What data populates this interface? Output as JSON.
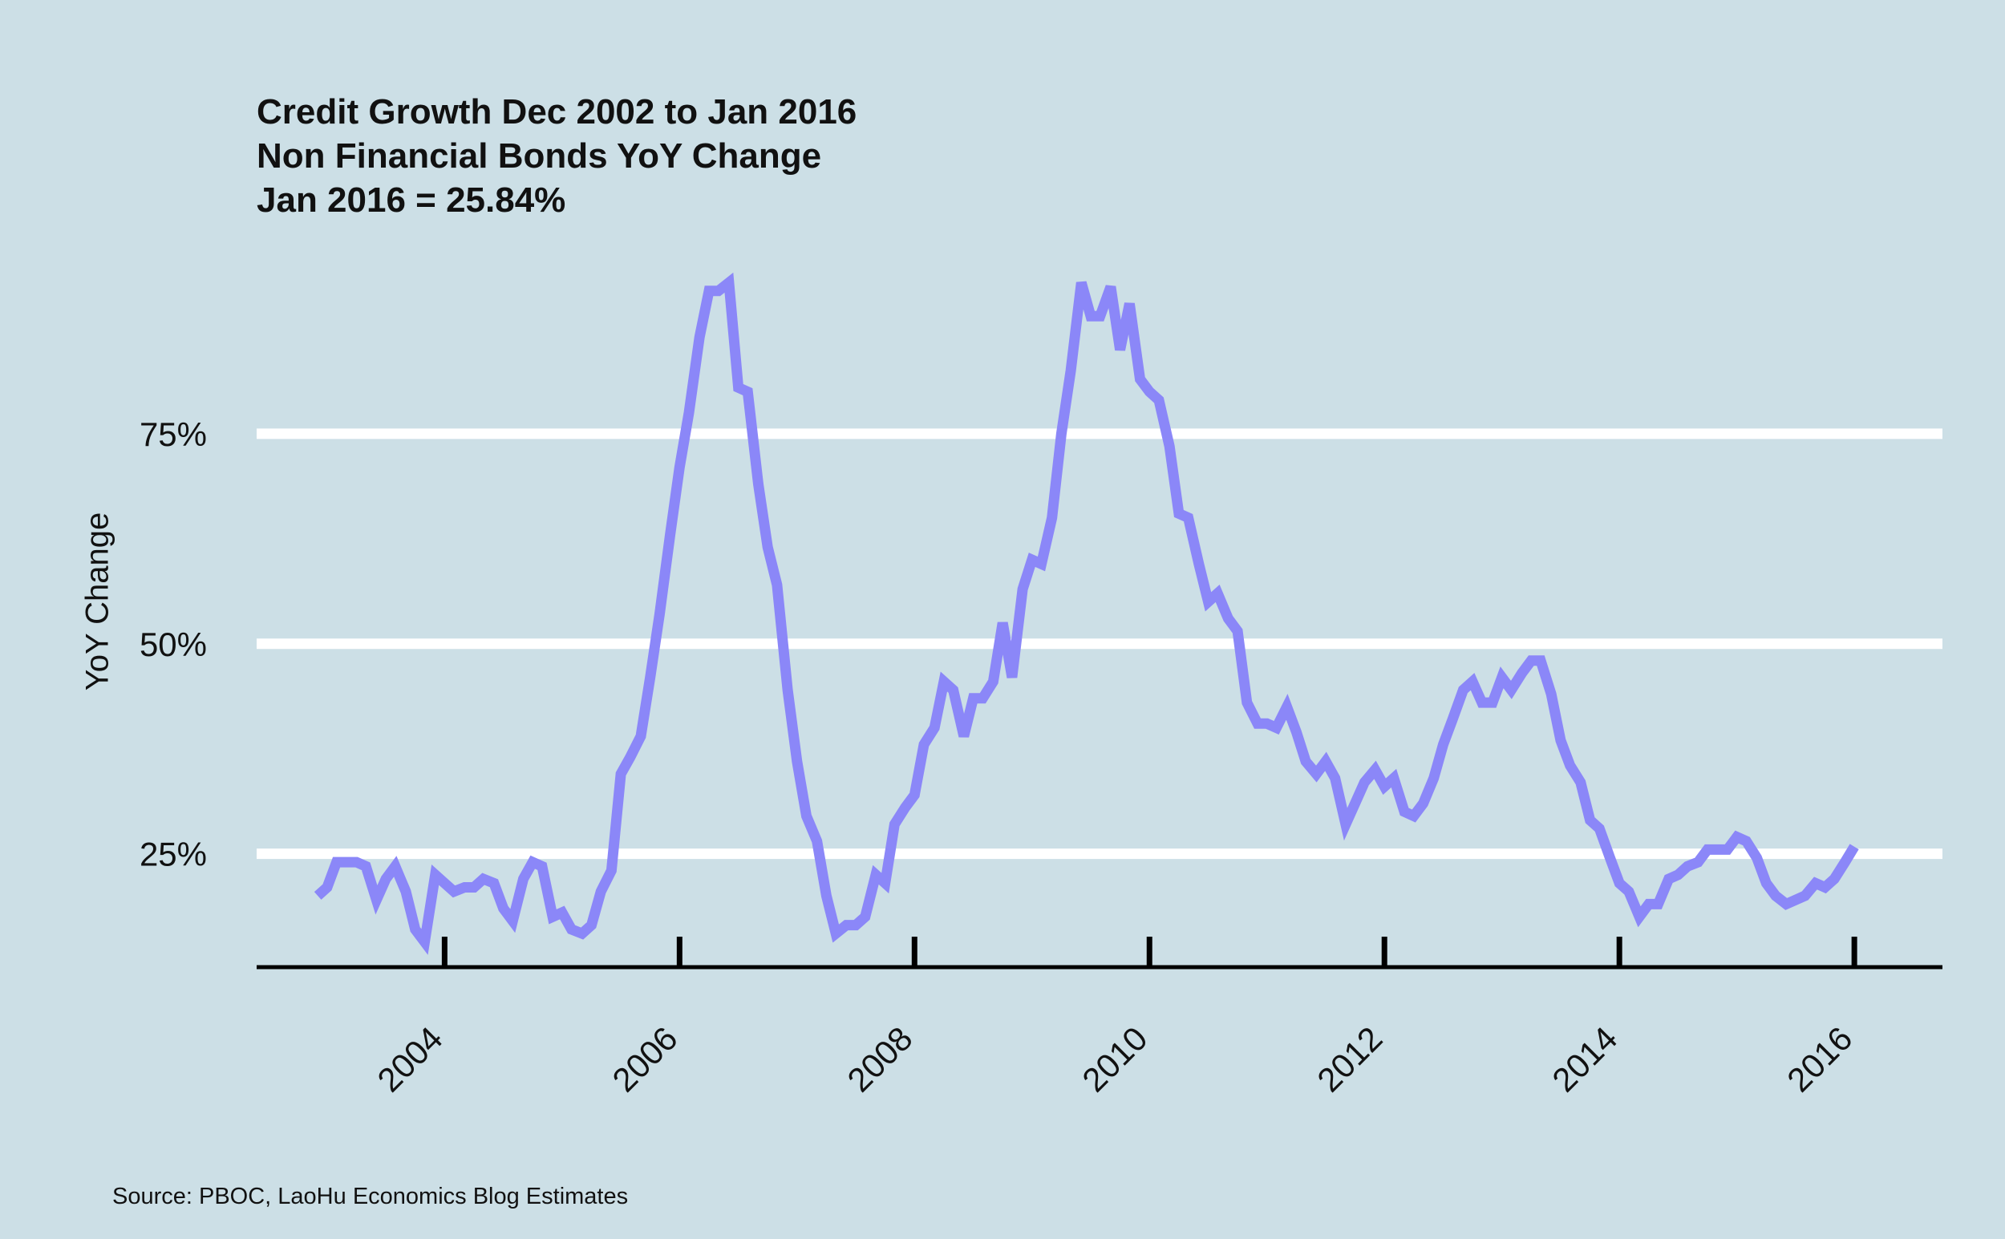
{
  "chart_data": {
    "type": "line",
    "title_lines": [
      "Credit Growth Dec 2002 to Jan 2016",
      "Non Financial Bonds YoY Change",
      "Jan 2016 = 25.84%"
    ],
    "xlabel": "",
    "ylabel": "YoY Change",
    "source": "Source: PBOC, LaoHu Economics Blog Estimates",
    "x_ticks": [
      2004,
      2006,
      2008,
      2010,
      2012,
      2014,
      2016
    ],
    "x_tick_labels": [
      "2004",
      "2006",
      "2008",
      "2010",
      "2012",
      "2014",
      "2016"
    ],
    "y_ticks": [
      25,
      50,
      75
    ],
    "y_tick_labels": [
      "25%",
      "50%",
      "75%"
    ],
    "xlim": [
      2002.4,
      2016.75
    ],
    "ylim": [
      11.5,
      98
    ],
    "grid": true,
    "legend": "none",
    "series": [
      {
        "name": "Non Financial Bonds YoY Change",
        "color": "#8B87F8",
        "points": [
          [
            2002.92,
            20.0
          ],
          [
            2003.0,
            21.0
          ],
          [
            2003.08,
            24.0
          ],
          [
            2003.17,
            24.0
          ],
          [
            2003.25,
            24.0
          ],
          [
            2003.33,
            23.5
          ],
          [
            2003.42,
            19.5
          ],
          [
            2003.5,
            22.0
          ],
          [
            2003.58,
            23.5
          ],
          [
            2003.67,
            20.5
          ],
          [
            2003.75,
            16.0
          ],
          [
            2003.83,
            14.5
          ],
          [
            2003.92,
            22.5
          ],
          [
            2004.0,
            21.5
          ],
          [
            2004.08,
            20.5
          ],
          [
            2004.17,
            21.0
          ],
          [
            2004.25,
            21.0
          ],
          [
            2004.33,
            22.0
          ],
          [
            2004.42,
            21.5
          ],
          [
            2004.5,
            18.5
          ],
          [
            2004.58,
            17.0
          ],
          [
            2004.67,
            22.0
          ],
          [
            2004.75,
            24.0
          ],
          [
            2004.83,
            23.5
          ],
          [
            2004.92,
            17.5
          ],
          [
            2005.0,
            18.0
          ],
          [
            2005.08,
            16.0
          ],
          [
            2005.17,
            15.5
          ],
          [
            2005.25,
            16.5
          ],
          [
            2005.33,
            20.5
          ],
          [
            2005.42,
            23.0
          ],
          [
            2005.5,
            34.5
          ],
          [
            2005.58,
            36.5
          ],
          [
            2005.67,
            39.0
          ],
          [
            2005.75,
            46.0
          ],
          [
            2005.83,
            53.5
          ],
          [
            2005.92,
            63.0
          ],
          [
            2006.0,
            71.0
          ],
          [
            2006.08,
            77.5
          ],
          [
            2006.17,
            86.5
          ],
          [
            2006.25,
            92.0
          ],
          [
            2006.33,
            92.0
          ],
          [
            2006.42,
            93.0
          ],
          [
            2006.5,
            80.5
          ],
          [
            2006.58,
            80.0
          ],
          [
            2006.67,
            69.0
          ],
          [
            2006.75,
            61.5
          ],
          [
            2006.83,
            57.0
          ],
          [
            2006.92,
            44.5
          ],
          [
            2007.0,
            36.0
          ],
          [
            2007.08,
            29.5
          ],
          [
            2007.17,
            26.5
          ],
          [
            2007.25,
            20.0
          ],
          [
            2007.33,
            15.5
          ],
          [
            2007.42,
            16.5
          ],
          [
            2007.5,
            16.5
          ],
          [
            2007.58,
            17.5
          ],
          [
            2007.67,
            22.5
          ],
          [
            2007.75,
            21.5
          ],
          [
            2007.83,
            28.5
          ],
          [
            2007.92,
            30.5
          ],
          [
            2008.0,
            32.0
          ],
          [
            2008.08,
            38.0
          ],
          [
            2008.17,
            40.0
          ],
          [
            2008.25,
            45.5
          ],
          [
            2008.33,
            44.5
          ],
          [
            2008.42,
            39.0
          ],
          [
            2008.5,
            43.5
          ],
          [
            2008.58,
            43.5
          ],
          [
            2008.67,
            45.5
          ],
          [
            2008.75,
            52.5
          ],
          [
            2008.83,
            46.0
          ],
          [
            2008.92,
            56.5
          ],
          [
            2009.0,
            60.0
          ],
          [
            2009.08,
            59.5
          ],
          [
            2009.17,
            65.0
          ],
          [
            2009.25,
            75.0
          ],
          [
            2009.33,
            82.5
          ],
          [
            2009.42,
            93.0
          ],
          [
            2009.5,
            89.0
          ],
          [
            2009.58,
            89.0
          ],
          [
            2009.67,
            92.5
          ],
          [
            2009.75,
            85.0
          ],
          [
            2009.83,
            90.5
          ],
          [
            2009.92,
            81.5
          ],
          [
            2010.0,
            80.0
          ],
          [
            2010.08,
            79.0
          ],
          [
            2010.17,
            73.5
          ],
          [
            2010.25,
            65.5
          ],
          [
            2010.33,
            65.0
          ],
          [
            2010.42,
            59.5
          ],
          [
            2010.5,
            55.0
          ],
          [
            2010.58,
            56.0
          ],
          [
            2010.67,
            53.0
          ],
          [
            2010.75,
            51.5
          ],
          [
            2010.83,
            43.0
          ],
          [
            2010.92,
            40.5
          ],
          [
            2011.0,
            40.5
          ],
          [
            2011.08,
            40.0
          ],
          [
            2011.17,
            42.5
          ],
          [
            2011.25,
            39.5
          ],
          [
            2011.33,
            36.0
          ],
          [
            2011.42,
            34.5
          ],
          [
            2011.5,
            36.0
          ],
          [
            2011.58,
            34.0
          ],
          [
            2011.67,
            28.5
          ],
          [
            2011.75,
            31.0
          ],
          [
            2011.83,
            33.5
          ],
          [
            2011.92,
            35.0
          ],
          [
            2012.0,
            33.0
          ],
          [
            2012.08,
            34.0
          ],
          [
            2012.17,
            30.0
          ],
          [
            2012.25,
            29.5
          ],
          [
            2012.33,
            31.0
          ],
          [
            2012.42,
            34.0
          ],
          [
            2012.5,
            38.0
          ],
          [
            2012.58,
            41.0
          ],
          [
            2012.67,
            44.5
          ],
          [
            2012.75,
            45.5
          ],
          [
            2012.83,
            43.0
          ],
          [
            2012.92,
            43.0
          ],
          [
            2013.0,
            46.0
          ],
          [
            2013.08,
            44.5
          ],
          [
            2013.17,
            46.5
          ],
          [
            2013.25,
            48.0
          ],
          [
            2013.33,
            48.0
          ],
          [
            2013.42,
            44.0
          ],
          [
            2013.5,
            38.5
          ],
          [
            2013.58,
            35.5
          ],
          [
            2013.67,
            33.5
          ],
          [
            2013.75,
            29.0
          ],
          [
            2013.83,
            28.0
          ],
          [
            2013.92,
            24.5
          ],
          [
            2014.0,
            21.5
          ],
          [
            2014.08,
            20.5
          ],
          [
            2014.17,
            17.5
          ],
          [
            2014.25,
            19.0
          ],
          [
            2014.33,
            19.0
          ],
          [
            2014.42,
            22.0
          ],
          [
            2014.5,
            22.5
          ],
          [
            2014.58,
            23.5
          ],
          [
            2014.67,
            24.0
          ],
          [
            2014.75,
            25.5
          ],
          [
            2014.83,
            25.5
          ],
          [
            2014.92,
            25.5
          ],
          [
            2015.0,
            27.0
          ],
          [
            2015.08,
            26.5
          ],
          [
            2015.17,
            24.5
          ],
          [
            2015.25,
            21.5
          ],
          [
            2015.33,
            20.0
          ],
          [
            2015.42,
            19.0
          ],
          [
            2015.5,
            19.5
          ],
          [
            2015.58,
            20.0
          ],
          [
            2015.67,
            21.5
          ],
          [
            2015.75,
            21.0
          ],
          [
            2015.83,
            22.0
          ],
          [
            2015.92,
            24.0
          ],
          [
            2016.0,
            25.84
          ]
        ]
      }
    ]
  },
  "colors": {
    "background": "#CCDFE6",
    "gridline": "#FFFFFF",
    "axis": "#000000",
    "series": "#8B87F8"
  }
}
